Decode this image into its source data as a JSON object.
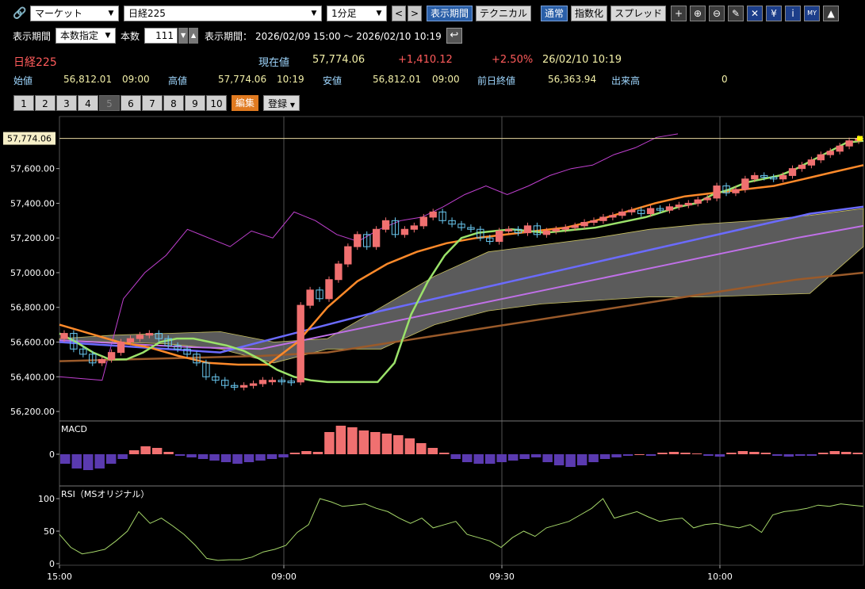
{
  "toolbar": {
    "market_select": "マーケット",
    "symbol_select": "日経225",
    "interval_select": "1分足",
    "prev": "<",
    "next": ">",
    "buttons": [
      {
        "name": "display-period-button",
        "label": "表示期間",
        "active": true
      },
      {
        "name": "technical-button",
        "label": "テクニカル",
        "active": false
      },
      {
        "name": "normal-button",
        "label": "通常",
        "active": true
      },
      {
        "name": "index-button",
        "label": "指数化",
        "active": false
      },
      {
        "name": "spread-button",
        "label": "スプレッド",
        "active": false
      }
    ],
    "icons": [
      {
        "name": "crosshair-icon",
        "glyph": "+"
      },
      {
        "name": "zoom-in-icon",
        "glyph": "⊕"
      },
      {
        "name": "zoom-out-icon",
        "glyph": "⊖"
      },
      {
        "name": "pencil-icon",
        "glyph": "✎"
      },
      {
        "name": "trendline-icon",
        "glyph": "✕"
      },
      {
        "name": "yen-icon",
        "glyph": "¥"
      },
      {
        "name": "info-icon",
        "glyph": "i"
      },
      {
        "name": "my-chart-icon",
        "glyph": "MY"
      },
      {
        "name": "area-chart-icon",
        "glyph": "▲"
      }
    ]
  },
  "period": {
    "label": "表示期間",
    "mode": "本数指定",
    "count_label": "本数",
    "count": "111",
    "range_label": "表示期間：",
    "range": "2026/02/09 15:00 ～ 2026/02/10 10:19"
  },
  "quote": {
    "name": "日経225",
    "current_label": "現在値",
    "current": "57,774.06",
    "change": "+1,410.12",
    "change_pct": "+2.50%",
    "datetime": "26/02/10  10:19",
    "open_label": "始値",
    "open": "56,812.01",
    "open_time": "09:00",
    "high_label": "高値",
    "high": "57,774.06",
    "high_time": "10:19",
    "low_label": "安値",
    "low": "56,812.01",
    "low_time": "09:00",
    "prev_close_label": "前日終値",
    "prev_close": "56,363.94",
    "volume_label": "出来高",
    "volume": "0"
  },
  "tabs": [
    "1",
    "2",
    "3",
    "4",
    "5",
    "6",
    "7",
    "8",
    "9",
    "10"
  ],
  "disabled_tab": "5",
  "edit_label": "編集",
  "register_label": "登録",
  "chart_data": [
    {
      "type": "line",
      "panel": "price",
      "y_ticks": [
        "57,600.00",
        "57,400.00",
        "57,200.00",
        "57,000.00",
        "56,800.00",
        "56,600.00",
        "56,400.00",
        "56,200.00"
      ],
      "ylim": [
        56150,
        57900
      ],
      "current_price_label": "57,774.06",
      "x_ticks": [
        "15:00",
        "09:00",
        "09:30",
        "10:00"
      ],
      "closes": [
        56650,
        56560,
        56530,
        56480,
        56500,
        56540,
        56600,
        56620,
        56640,
        56650,
        56620,
        56580,
        56560,
        56530,
        56480,
        56400,
        56380,
        56350,
        56340,
        56350,
        56360,
        56380,
        56380,
        56375,
        56370,
        56812,
        56900,
        56850,
        56960,
        57050,
        57150,
        57220,
        57150,
        57250,
        57300,
        57220,
        57250,
        57270,
        57320,
        57350,
        57300,
        57280,
        57260,
        57250,
        57200,
        57180,
        57240,
        57250,
        57230,
        57270,
        57220,
        57240,
        57250,
        57260,
        57270,
        57290,
        57300,
        57320,
        57330,
        57350,
        57360,
        57340,
        57370,
        57360,
        57380,
        57390,
        57400,
        57420,
        57430,
        57500,
        57460,
        57480,
        57540,
        57560,
        57550,
        57540,
        57560,
        57600,
        57620,
        57650,
        57680,
        57700,
        57730,
        57760,
        57774.06
      ],
      "ma_short": [
        56650,
        56600,
        56540,
        56500,
        56500,
        56540,
        56600,
        56620,
        56620,
        56600,
        56580,
        56550,
        56500,
        56440,
        56400,
        56380,
        56370,
        56370,
        56370,
        56370,
        56480,
        56760,
        56950,
        57100,
        57200,
        57230,
        57240,
        57250,
        57240,
        57230,
        57240,
        57250,
        57260,
        57280,
        57300,
        57320,
        57350,
        57380,
        57400,
        57450,
        57480,
        57520,
        57540,
        57560,
        57600,
        57650,
        57700,
        57750,
        57760
      ],
      "ma_mid": [
        56700,
        56650,
        56600,
        56570,
        56520,
        56480,
        56470,
        56470,
        56600,
        56800,
        56950,
        57050,
        57120,
        57170,
        57200,
        57220,
        57240,
        57260,
        57300,
        57350,
        57400,
        57440,
        57460,
        57480,
        57500,
        57540,
        57580,
        57620
      ],
      "ma_long": [
        56600,
        56580,
        56560,
        56540,
        56620,
        56700,
        56780,
        56850,
        56920,
        56990,
        57060,
        57130,
        57200,
        57270,
        57340,
        57380
      ],
      "ma_longer": [
        56610,
        56590,
        56570,
        56560,
        56640,
        56720,
        56800,
        56880,
        56960,
        57040,
        57120,
        57200,
        57270
      ],
      "ma_longest": [
        56490,
        56500,
        56510,
        56520,
        56540,
        56600,
        56660,
        56720,
        56780,
        56840,
        56900,
        56960,
        57000
      ],
      "volatility_line": [
        56400,
        56390,
        56380,
        56850,
        57000,
        57100,
        57250,
        57200,
        57150,
        57240,
        57200,
        57350,
        57300,
        57220,
        57180,
        57250,
        57300,
        57320,
        57380,
        57450,
        57500,
        57450,
        57500,
        57560,
        57600,
        57620,
        57680,
        57720,
        57780,
        57800
      ]
    },
    {
      "type": "bar",
      "panel": "macd",
      "title": "MACD",
      "zero_label": "0",
      "values": [
        -12,
        -18,
        -20,
        -18,
        -12,
        -6,
        5,
        10,
        8,
        3,
        -2,
        -4,
        -6,
        -8,
        -10,
        -12,
        -10,
        -8,
        -6,
        -4,
        2,
        4,
        3,
        28,
        36,
        34,
        30,
        28,
        26,
        24,
        20,
        14,
        8,
        2,
        -6,
        -10,
        -12,
        -12,
        -10,
        -8,
        -6,
        -4,
        -10,
        -14,
        -16,
        -14,
        -10,
        -6,
        -4,
        -2,
        0,
        -2,
        2,
        3,
        2,
        1,
        -2,
        -3,
        2,
        4,
        3,
        2,
        -2,
        -3,
        -2,
        -2,
        2,
        4,
        3,
        2
      ]
    },
    {
      "type": "line",
      "panel": "rsi",
      "title": "RSI（MSオリジナル）",
      "y_ticks": [
        "100",
        "50",
        "0"
      ],
      "ylim": [
        0,
        100
      ],
      "values": [
        45,
        25,
        15,
        18,
        22,
        35,
        50,
        80,
        62,
        70,
        58,
        45,
        28,
        8,
        5,
        6,
        6,
        10,
        18,
        22,
        28,
        48,
        60,
        100,
        95,
        88,
        90,
        92,
        85,
        80,
        70,
        62,
        70,
        55,
        60,
        65,
        45,
        40,
        35,
        25,
        40,
        50,
        42,
        55,
        60,
        65,
        75,
        85,
        100,
        70,
        75,
        80,
        72,
        65,
        68,
        70,
        55,
        60,
        62,
        58,
        55,
        60,
        48,
        75,
        80,
        82,
        85,
        90,
        88,
        92,
        90,
        88
      ]
    }
  ],
  "colors": {
    "candle_up": "#f07070",
    "candle_down": "#6ac8f0",
    "ma_short": "#9be26a",
    "ma_mid": "#ff8a2a",
    "ma_long": "#6b6bff",
    "ma_longer": "#c070e8",
    "ma_longest": "#9a5a2a",
    "cloud": "#7a7a7a",
    "volatility": "#c040d0",
    "macd_pos": "#f07070",
    "macd_neg": "#5a3ab0",
    "rsi": "#a6d86a"
  }
}
